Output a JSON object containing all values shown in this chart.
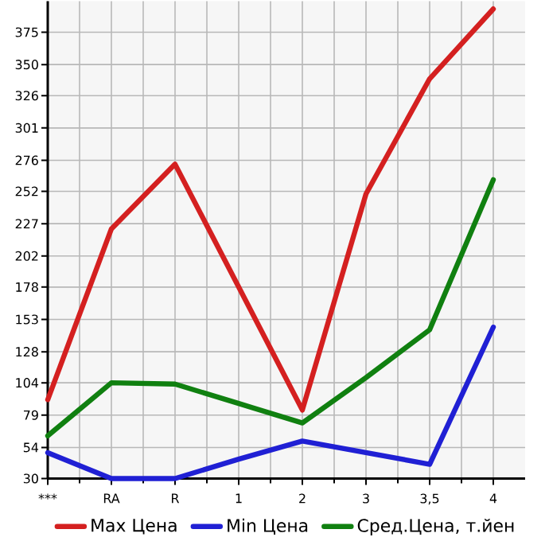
{
  "chart_data": {
    "type": "line",
    "categories": [
      "***",
      "RA",
      "R",
      "1",
      "2",
      "3",
      "3,5",
      "4"
    ],
    "series": [
      {
        "name": "Max Цена",
        "color": "#d42020",
        "values": [
          91,
          223,
          273,
          178,
          83,
          250,
          339,
          393
        ]
      },
      {
        "name": "Min Цена",
        "color": "#2020d4",
        "values": [
          50,
          30,
          30,
          45,
          59,
          50,
          41,
          147
        ]
      },
      {
        "name": "Сред.Цена, т.йен",
        "color": "#108010",
        "values": [
          63,
          104,
          103,
          88,
          73,
          108,
          145,
          261
        ]
      }
    ],
    "ylim": [
      30,
      399
    ],
    "yticks": [
      30,
      54,
      79,
      104,
      128,
      153,
      178,
      202,
      227,
      252,
      276,
      301,
      326,
      350,
      375
    ],
    "grid": true,
    "legend": "bottom",
    "marker": "none",
    "line_style": "solid"
  }
}
